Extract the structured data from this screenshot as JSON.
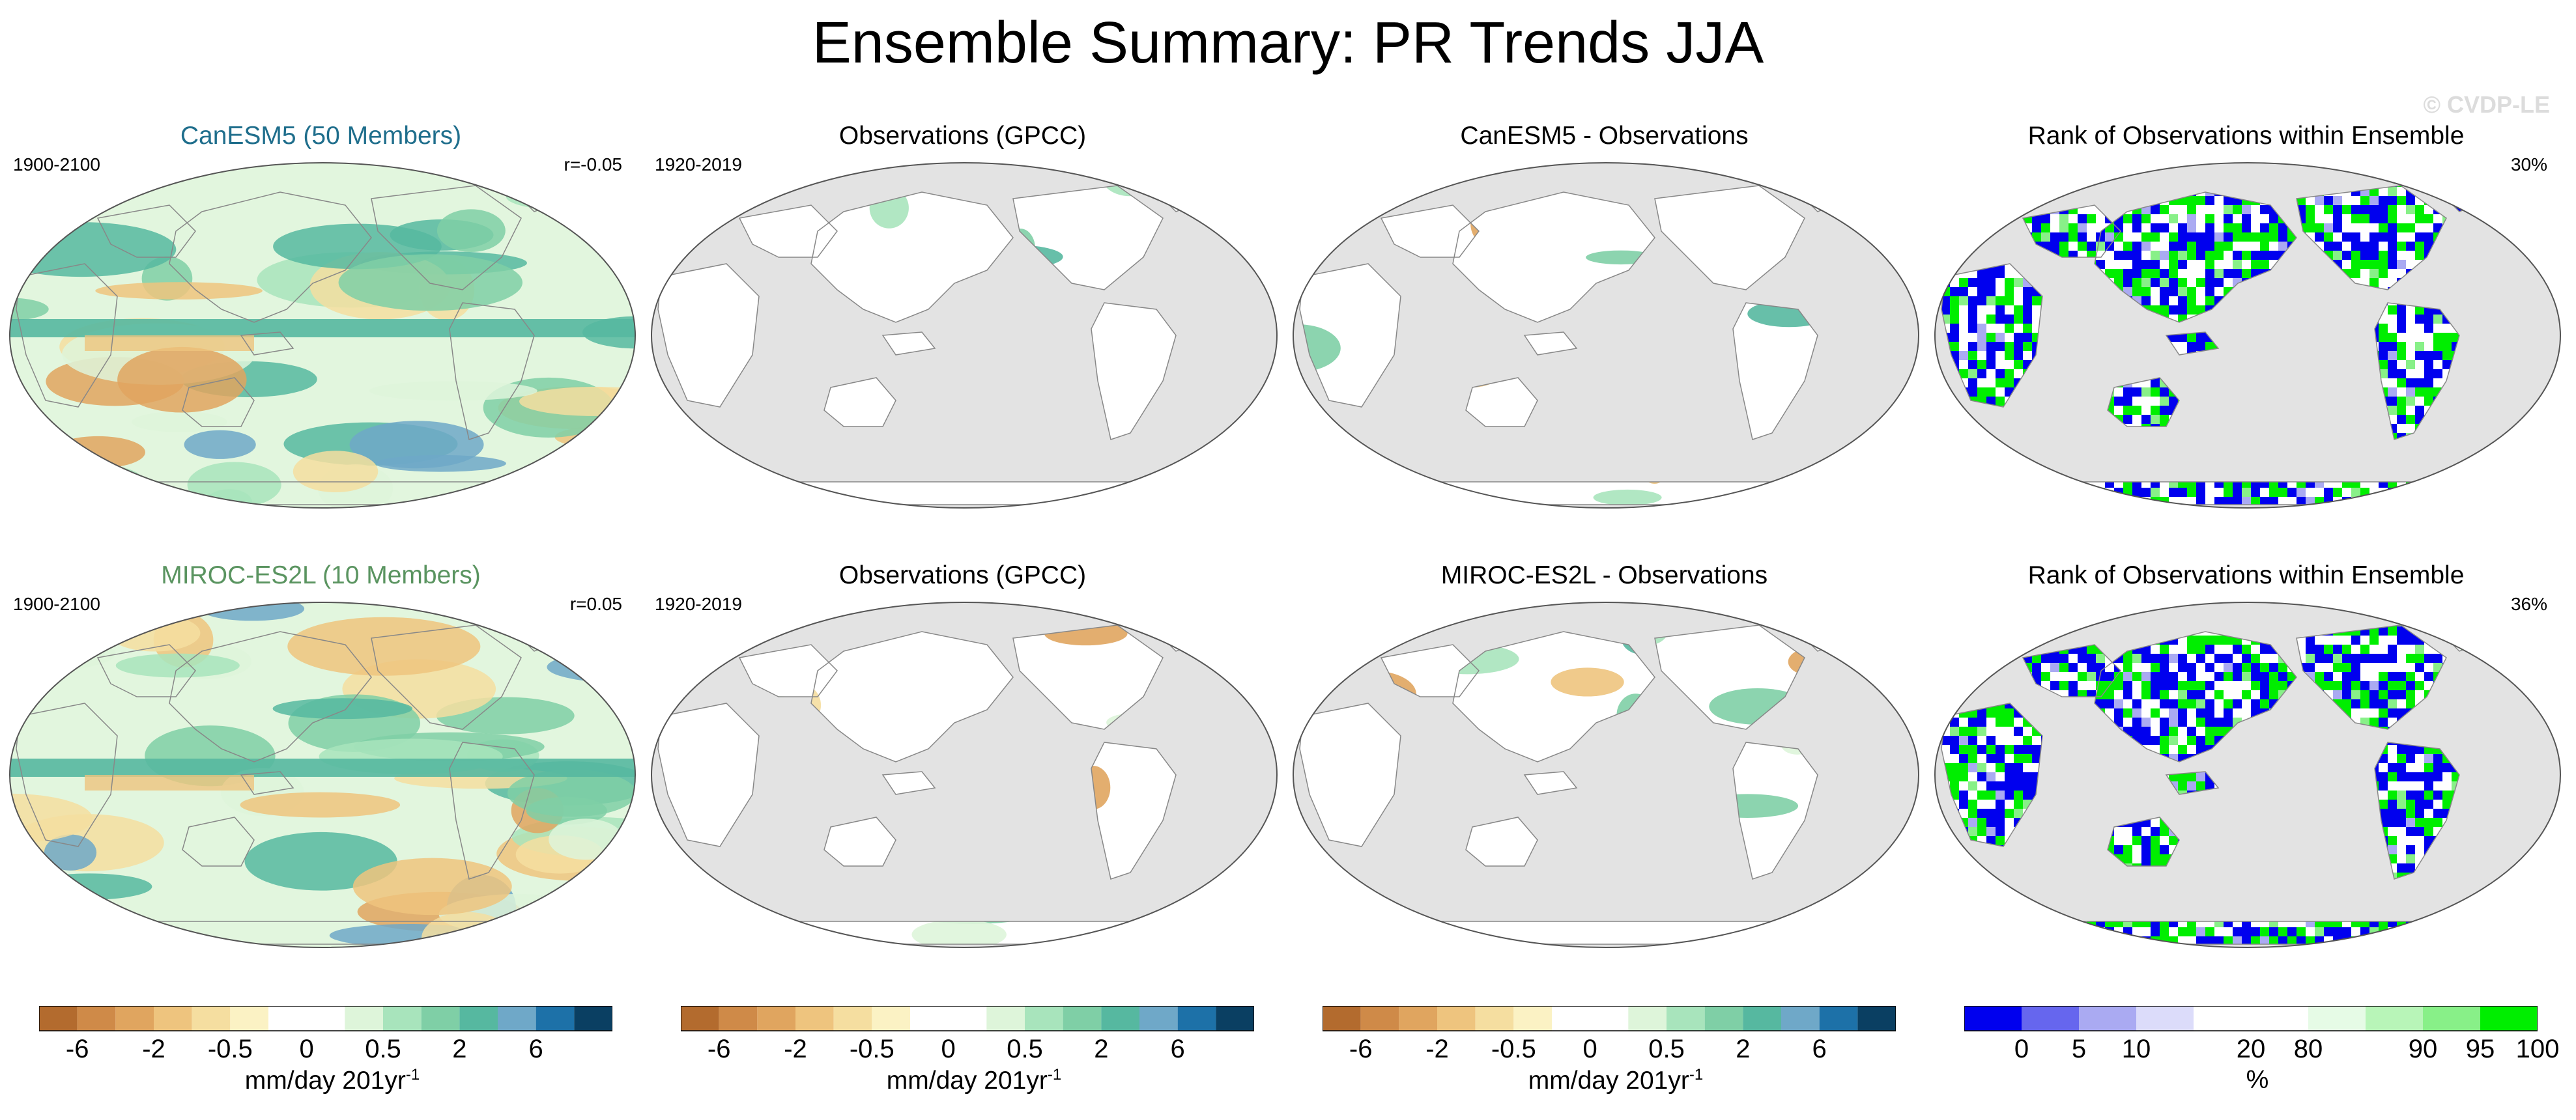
{
  "title": "Ensemble Summary: PR Trends JJA",
  "watermark": "© CVDP-LE",
  "rows": [
    {
      "panels": [
        {
          "title": "CanESM5 (50 Members)",
          "title_color": "#1f6e8c",
          "left": "1900-2100",
          "right": "r=-0.05",
          "kind": "trend-global"
        },
        {
          "title": "Observations (GPCC)",
          "title_color": "#000000",
          "left": "1920-2019",
          "right": "",
          "kind": "trend-land"
        },
        {
          "title": "CanESM5 - Observations",
          "title_color": "#000000",
          "left": "",
          "right": "",
          "kind": "trend-land"
        },
        {
          "title": "Rank of Observations within Ensemble",
          "title_color": "#000000",
          "left": "",
          "right": "30%",
          "kind": "rank"
        }
      ]
    },
    {
      "panels": [
        {
          "title": "MIROC-ES2L (10 Members)",
          "title_color": "#5a9460",
          "left": "1900-2100",
          "right": "r=0.05",
          "kind": "trend-global"
        },
        {
          "title": "Observations (GPCC)",
          "title_color": "#000000",
          "left": "1920-2019",
          "right": "",
          "kind": "trend-land"
        },
        {
          "title": "MIROC-ES2L - Observations",
          "title_color": "#000000",
          "left": "",
          "right": "",
          "kind": "trend-land"
        },
        {
          "title": "Rank of Observations within Ensemble",
          "title_color": "#000000",
          "left": "",
          "right": "36%",
          "kind": "rank"
        }
      ]
    }
  ],
  "colorbars": [
    {
      "name": "trend",
      "colors": [
        "#b36b2e",
        "#cf8a48",
        "#e0a55f",
        "#eec47e",
        "#f5dea0",
        "#fbf2c4",
        "#ffffff",
        "#ffffff",
        "#def5da",
        "#a8e4bc",
        "#7fcfa6",
        "#56b8a0",
        "#6fa8c8",
        "#1d71a8",
        "#0a3f62"
      ],
      "ticks": [
        {
          "label": "-6",
          "pos": 1
        },
        {
          "label": "-2",
          "pos": 3
        },
        {
          "label": "-0.5",
          "pos": 5
        },
        {
          "label": "0",
          "pos": 7
        },
        {
          "label": "0.5",
          "pos": 9
        },
        {
          "label": "2",
          "pos": 11
        },
        {
          "label": "6",
          "pos": 13
        }
      ],
      "units": "mm/day 201yr",
      "units_sup": "-1"
    },
    {
      "name": "rank",
      "colors": [
        "#0000ee",
        "#6666ee",
        "#aaaaf2",
        "#dcdcfa",
        "#ffffff",
        "#ffffff",
        "#e6fbe6",
        "#b8f5b8",
        "#88f088",
        "#00ee00"
      ],
      "ticks": [
        {
          "label": "0",
          "pos": 1
        },
        {
          "label": "5",
          "pos": 2
        },
        {
          "label": "10",
          "pos": 3
        },
        {
          "label": "20",
          "pos": 5
        },
        {
          "label": "80",
          "pos": 6
        },
        {
          "label": "90",
          "pos": 8
        },
        {
          "label": "95",
          "pos": 9
        },
        {
          "label": "100",
          "pos": 10
        }
      ],
      "units": "%",
      "units_sup": ""
    }
  ]
}
